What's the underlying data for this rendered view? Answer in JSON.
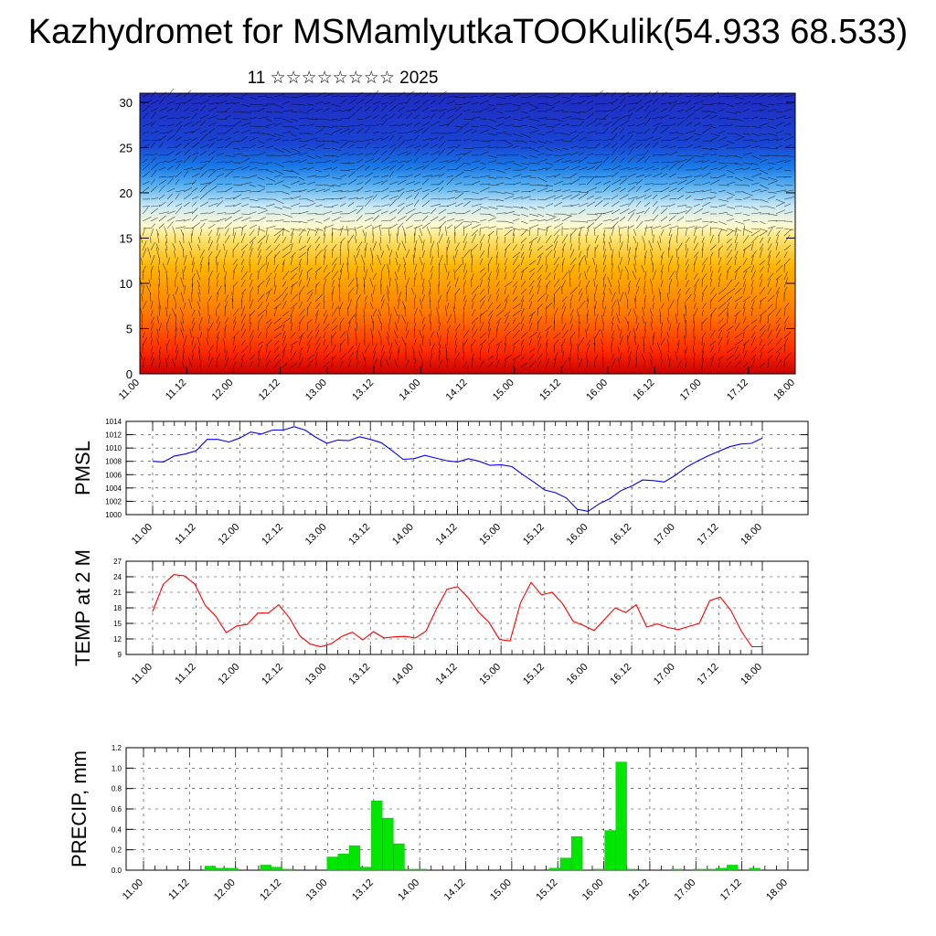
{
  "page": {
    "title": "Kazhydromet for MSMamlyutkaTOOKulik(54.933 68.533)",
    "subtitle": "11 ☆☆☆☆☆☆☆☆ 2025"
  },
  "colors": {
    "pmsl": "#0000ff",
    "temp": "#ff0000",
    "precip": "#00e600",
    "grid": "#000000",
    "cross_section_scale": [
      "#c80000",
      "#ff2a00",
      "#ff7a00",
      "#ffb400",
      "#ffe26e",
      "#fffbd2",
      "#c6e7f7",
      "#5ab2f0",
      "#1878e6",
      "#1a44d2",
      "#202ac0"
    ]
  },
  "chart_data": [
    {
      "id": "cross_section",
      "type": "heatmap",
      "title": "",
      "xlabel": "",
      "ylabel": "",
      "x_tick_labels": [
        "11.00",
        "11.12",
        "12.00",
        "12.12",
        "13.00",
        "13.12",
        "14.00",
        "14.12",
        "15.00",
        "15.12",
        "16.00",
        "16.12",
        "17.00",
        "17.12",
        "18.00"
      ],
      "y_tick_labels": [
        "0",
        "5",
        "10",
        "15",
        "20",
        "25",
        "30"
      ],
      "ylim": [
        0,
        31
      ],
      "note_colors": "warm colors near surface, cold colors aloft",
      "overlay": "wind vectors"
    },
    {
      "id": "pmsl",
      "type": "line",
      "ylabel": "PMSL",
      "ylim": [
        1000,
        1014
      ],
      "y_ticks": [
        1000,
        1002,
        1004,
        1006,
        1008,
        1010,
        1012,
        1014
      ],
      "x_tick_labels": [
        "11.00",
        "11.12",
        "12.00",
        "12.12",
        "13.00",
        "13.12",
        "14.00",
        "14.12",
        "15.00",
        "15.12",
        "16.00",
        "16.12",
        "17.00",
        "17.12",
        "18.00"
      ],
      "grid": true,
      "series": [
        {
          "values": [
            1008.0,
            1007.9,
            1008.8,
            1009.1,
            1009.6,
            1011.3,
            1011.3,
            1010.9,
            1011.5,
            1012.4,
            1012.1,
            1012.7,
            1012.7,
            1013.2,
            1012.7,
            1011.6,
            1010.7,
            1011.2,
            1011.1,
            1011.7,
            1011.3,
            1010.8,
            1009.6,
            1008.3,
            1008.4,
            1008.9,
            1008.5,
            1008.1,
            1007.9,
            1008.4,
            1008.0,
            1007.4,
            1007.5,
            1007.2,
            1006.0,
            1004.9,
            1003.7,
            1003.3,
            1002.5,
            1000.8,
            1000.5,
            1001.6,
            1002.4,
            1003.6,
            1004.3,
            1005.2,
            1005.1,
            1004.9,
            1005.9,
            1007.1,
            1008.0,
            1008.8,
            1009.5,
            1010.2,
            1010.6,
            1010.7,
            1011.5
          ]
        }
      ]
    },
    {
      "id": "temp",
      "type": "line",
      "ylabel": "TEMP at 2 M",
      "ylim": [
        9,
        27
      ],
      "y_ticks": [
        9,
        12,
        15,
        18,
        21,
        24,
        27
      ],
      "x_tick_labels": [
        "11.00",
        "11.12",
        "12.00",
        "12.12",
        "13.00",
        "13.12",
        "14.00",
        "14.12",
        "15.00",
        "15.12",
        "16.00",
        "16.12",
        "17.00",
        "17.12",
        "18.00"
      ],
      "grid": true,
      "series": [
        {
          "values": [
            17.3,
            22.5,
            24.4,
            24.2,
            22.6,
            18.5,
            16.4,
            13.2,
            14.5,
            14.8,
            17.0,
            17.0,
            18.6,
            16.1,
            12.6,
            11.0,
            10.5,
            11.1,
            12.5,
            13.3,
            11.8,
            13.4,
            12.2,
            12.4,
            12.5,
            12.2,
            13.5,
            17.8,
            21.6,
            22.1,
            20.0,
            17.2,
            15.2,
            11.9,
            11.6,
            19.0,
            22.9,
            20.5,
            21.0,
            18.8,
            15.4,
            14.6,
            13.6,
            15.8,
            18.0,
            17.1,
            18.6,
            14.3,
            14.9,
            14.2,
            13.8,
            14.4,
            15.0,
            19.4,
            20.1,
            17.5,
            13.5,
            10.5,
            10.5
          ]
        }
      ]
    },
    {
      "id": "precip",
      "type": "bar",
      "ylabel": "PRECIP, mm",
      "ylim": [
        0,
        1.2
      ],
      "y_ticks": [
        "0.0",
        "0.2",
        "0.4",
        "0.6",
        "0.8",
        "1.0",
        "1.2"
      ],
      "x_tick_labels": [
        "11.00",
        "11.12",
        "12.00",
        "12.12",
        "13.00",
        "13.12",
        "14.00",
        "14.12",
        "15.00",
        "15.12",
        "16.00",
        "16.12",
        "17.00",
        "17.12",
        "18.00"
      ],
      "grid": true,
      "series": [
        {
          "values": [
            0,
            0,
            0,
            0,
            0,
            0,
            0.04,
            0.02,
            0.02,
            0,
            0,
            0.05,
            0.03,
            0.01,
            0,
            0,
            0,
            0.13,
            0.16,
            0.24,
            0.03,
            0.68,
            0.51,
            0.26,
            0.01,
            0.01,
            0,
            0,
            0,
            0,
            0,
            0,
            0,
            0,
            0,
            0,
            0,
            0.02,
            0.12,
            0.33,
            0,
            0.01,
            0.39,
            1.06,
            0.01,
            0,
            0,
            0,
            0.01,
            0,
            0.01,
            0.01,
            0.02,
            0.05,
            0,
            0.02,
            0,
            0,
            0
          ]
        }
      ]
    }
  ]
}
